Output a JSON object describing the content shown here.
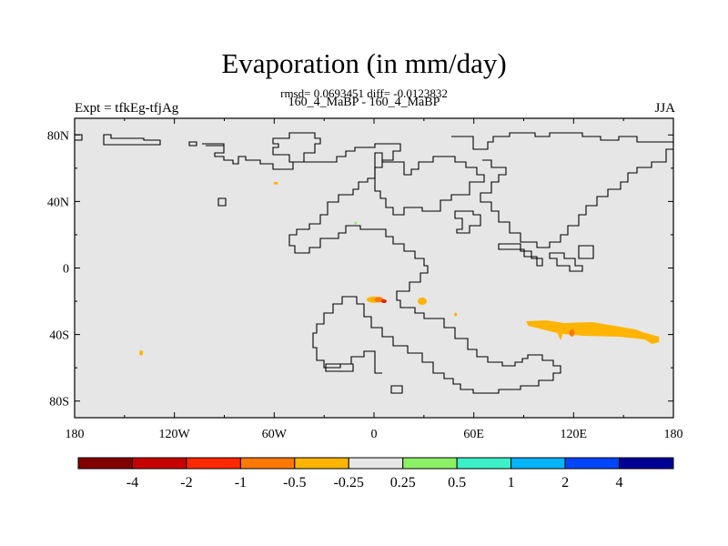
{
  "title": "Evaporation (in mm/day)",
  "stats": "rmsd= 0.0693451 diff= -0.0123832",
  "subtitle": "160_4_MaBP - 160_4_MaBP",
  "left_label": "Expt = tfkEg-tfjAg",
  "right_label": "JJA",
  "map": {
    "background": "#e6e6e6",
    "coastline_color": "#000000",
    "x_ticks": [
      "180",
      "120W",
      "60W",
      "0",
      "60E",
      "120E",
      "180"
    ],
    "y_ticks": [
      "80N",
      "40N",
      "0",
      "40S",
      "80S"
    ],
    "anomalies": [
      {
        "lon": 0,
        "lat": -19,
        "color": "#ffb400",
        "level": "-0.5 to -0.25"
      },
      {
        "lon": 3,
        "lat": -19,
        "color": "#ff7800",
        "level": "-1 to -0.5"
      },
      {
        "lon": 6,
        "lat": -20,
        "color": "#e1240a",
        "level": "-2 to -1"
      },
      {
        "lon": 29,
        "lat": -20,
        "color": "#ffb400",
        "level": "-0.5 to -0.25"
      },
      {
        "lon": 49,
        "lat": -28,
        "color": "#ffb400",
        "level": "-0.5 to -0.25"
      },
      {
        "lon": 120,
        "lat": -38,
        "color": "#ffb400",
        "level": "-0.5 to -0.25"
      },
      {
        "lon": 119,
        "lat": -39,
        "color": "#ff7800",
        "level": "-1 to -0.5"
      },
      {
        "lon": -59,
        "lat": 51,
        "color": "#ffb400",
        "level": "-0.5 to -0.25"
      },
      {
        "lon": -11,
        "lat": 27,
        "color": "#8cf064",
        "level": "0.25 to 0.5"
      },
      {
        "lon": -140,
        "lat": -51,
        "color": "#ffb400",
        "level": "-0.5 to -0.25"
      }
    ]
  },
  "colorbar": {
    "colors": [
      "#820000",
      "#c80000",
      "#ff2800",
      "#ff7800",
      "#ffb400",
      "#e6e6e6",
      "#8cf064",
      "#3cf0c8",
      "#00b4ff",
      "#0046ff",
      "#000096"
    ],
    "labels": [
      "-4",
      "-2",
      "-1",
      "-0.5",
      "-0.25",
      "0.25",
      "0.5",
      "1",
      "2",
      "4"
    ]
  }
}
